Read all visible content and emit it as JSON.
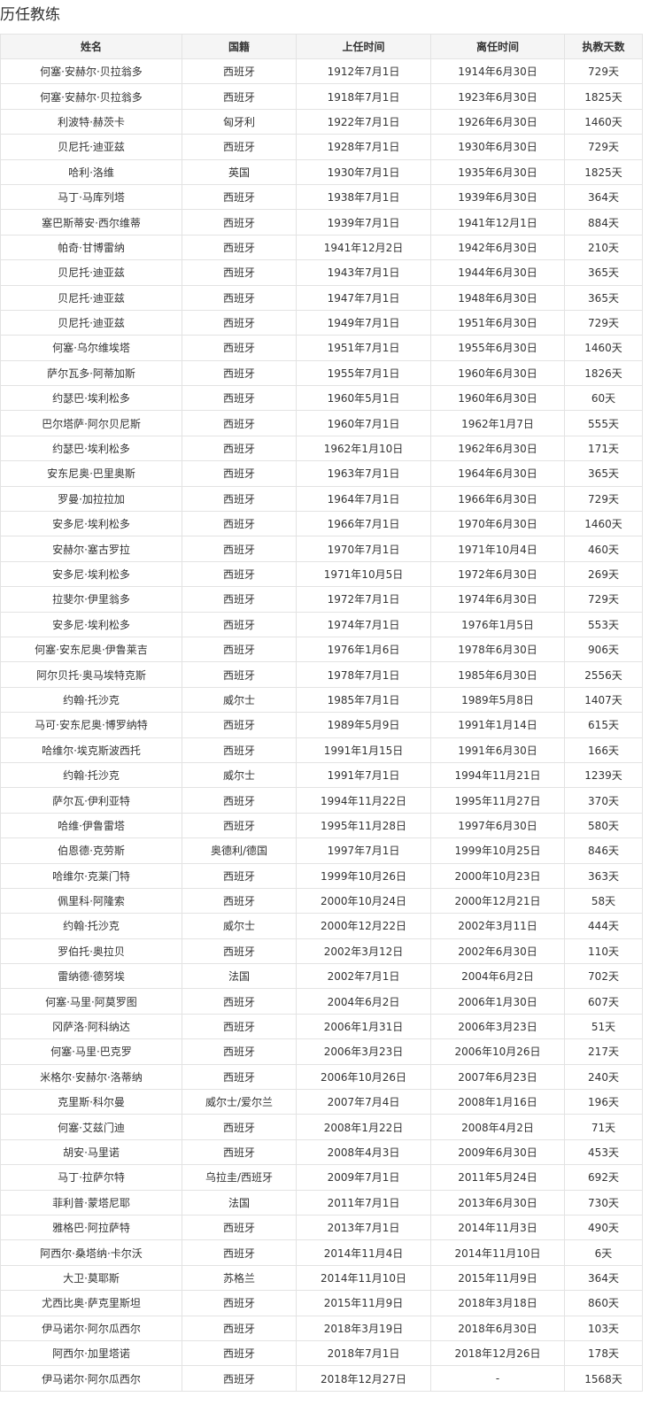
{
  "title": "历任教练",
  "table": {
    "headers": [
      "姓名",
      "国籍",
      "上任时间",
      "离任时间",
      "执教天数"
    ],
    "rows": [
      [
        "何塞·安赫尔·贝拉翁多",
        "西班牙",
        "1912年7月1日",
        "1914年6月30日",
        "729天"
      ],
      [
        "何塞·安赫尔·贝拉翁多",
        "西班牙",
        "1918年7月1日",
        "1923年6月30日",
        "1825天"
      ],
      [
        "利波特·赫茨卡",
        "匈牙利",
        "1922年7月1日",
        "1926年6月30日",
        "1460天"
      ],
      [
        "贝尼托·迪亚兹",
        "西班牙",
        "1928年7月1日",
        "1930年6月30日",
        "729天"
      ],
      [
        "哈利·洛维",
        "英国",
        "1930年7月1日",
        "1935年6月30日",
        "1825天"
      ],
      [
        "马丁·马库列塔",
        "西班牙",
        "1938年7月1日",
        "1939年6月30日",
        "364天"
      ],
      [
        "塞巴斯蒂安·西尔维蒂",
        "西班牙",
        "1939年7月1日",
        "1941年12月1日",
        "884天"
      ],
      [
        "帕奇·甘博雷纳",
        "西班牙",
        "1941年12月2日",
        "1942年6月30日",
        "210天"
      ],
      [
        "贝尼托·迪亚兹",
        "西班牙",
        "1943年7月1日",
        "1944年6月30日",
        "365天"
      ],
      [
        "贝尼托·迪亚兹",
        "西班牙",
        "1947年7月1日",
        "1948年6月30日",
        "365天"
      ],
      [
        "贝尼托·迪亚兹",
        "西班牙",
        "1949年7月1日",
        "1951年6月30日",
        "729天"
      ],
      [
        "何塞·乌尔维埃塔",
        "西班牙",
        "1951年7月1日",
        "1955年6月30日",
        "1460天"
      ],
      [
        "萨尔瓦多·阿蒂加斯",
        "西班牙",
        "1955年7月1日",
        "1960年6月30日",
        "1826天"
      ],
      [
        "约瑟巴·埃利松多",
        "西班牙",
        "1960年5月1日",
        "1960年6月30日",
        "60天"
      ],
      [
        "巴尔塔萨·阿尔贝尼斯",
        "西班牙",
        "1960年7月1日",
        "1962年1月7日",
        "555天"
      ],
      [
        "约瑟巴·埃利松多",
        "西班牙",
        "1962年1月10日",
        "1962年6月30日",
        "171天"
      ],
      [
        "安东尼奥·巴里奥斯",
        "西班牙",
        "1963年7月1日",
        "1964年6月30日",
        "365天"
      ],
      [
        "罗曼·加拉拉加",
        "西班牙",
        "1964年7月1日",
        "1966年6月30日",
        "729天"
      ],
      [
        "安多尼·埃利松多",
        "西班牙",
        "1966年7月1日",
        "1970年6月30日",
        "1460天"
      ],
      [
        "安赫尔·塞古罗拉",
        "西班牙",
        "1970年7月1日",
        "1971年10月4日",
        "460天"
      ],
      [
        "安多尼·埃利松多",
        "西班牙",
        "1971年10月5日",
        "1972年6月30日",
        "269天"
      ],
      [
        "拉斐尔·伊里翁多",
        "西班牙",
        "1972年7月1日",
        "1974年6月30日",
        "729天"
      ],
      [
        "安多尼·埃利松多",
        "西班牙",
        "1974年7月1日",
        "1976年1月5日",
        "553天"
      ],
      [
        "何塞·安东尼奥·伊鲁莱吉",
        "西班牙",
        "1976年1月6日",
        "1978年6月30日",
        "906天"
      ],
      [
        "阿尔贝托·奥马埃特克斯",
        "西班牙",
        "1978年7月1日",
        "1985年6月30日",
        "2556天"
      ],
      [
        "约翰·托沙克",
        "威尔士",
        "1985年7月1日",
        "1989年5月8日",
        "1407天"
      ],
      [
        "马可·安东尼奥·博罗纳特",
        "西班牙",
        "1989年5月9日",
        "1991年1月14日",
        "615天"
      ],
      [
        "哈维尔·埃克斯波西托",
        "西班牙",
        "1991年1月15日",
        "1991年6月30日",
        "166天"
      ],
      [
        "约翰·托沙克",
        "威尔士",
        "1991年7月1日",
        "1994年11月21日",
        "1239天"
      ],
      [
        "萨尔瓦·伊利亚特",
        "西班牙",
        "1994年11月22日",
        "1995年11月27日",
        "370天"
      ],
      [
        "哈维·伊鲁雷塔",
        "西班牙",
        "1995年11月28日",
        "1997年6月30日",
        "580天"
      ],
      [
        "伯恩德·克劳斯",
        "奥德利/德国",
        "1997年7月1日",
        "1999年10月25日",
        "846天"
      ],
      [
        "哈维尔·克莱门特",
        "西班牙",
        "1999年10月26日",
        "2000年10月23日",
        "363天"
      ],
      [
        "佩里科·阿隆索",
        "西班牙",
        "2000年10月24日",
        "2000年12月21日",
        "58天"
      ],
      [
        "约翰·托沙克",
        "威尔士",
        "2000年12月22日",
        "2002年3月11日",
        "444天"
      ],
      [
        "罗伯托·奥拉贝",
        "西班牙",
        "2002年3月12日",
        "2002年6月30日",
        "110天"
      ],
      [
        "雷纳德·德努埃",
        "法国",
        "2002年7月1日",
        "2004年6月2日",
        "702天"
      ],
      [
        "何塞·马里·阿莫罗图",
        "西班牙",
        "2004年6月2日",
        "2006年1月30日",
        "607天"
      ],
      [
        "冈萨洛·阿科纳达",
        "西班牙",
        "2006年1月31日",
        "2006年3月23日",
        "51天"
      ],
      [
        "何塞·马里·巴克罗",
        "西班牙",
        "2006年3月23日",
        "2006年10月26日",
        "217天"
      ],
      [
        "米格尔·安赫尔·洛蒂纳",
        "西班牙",
        "2006年10月26日",
        "2007年6月23日",
        "240天"
      ],
      [
        "克里斯·科尔曼",
        "威尔士/爱尔兰",
        "2007年7月4日",
        "2008年1月16日",
        "196天"
      ],
      [
        "何塞·艾兹门迪",
        "西班牙",
        "2008年1月22日",
        "2008年4月2日",
        "71天"
      ],
      [
        "胡安·马里诺",
        "西班牙",
        "2008年4月3日",
        "2009年6月30日",
        "453天"
      ],
      [
        "马丁·拉萨尔特",
        "乌拉圭/西班牙",
        "2009年7月1日",
        "2011年5月24日",
        "692天"
      ],
      [
        "菲利普·蒙塔尼耶",
        "法国",
        "2011年7月1日",
        "2013年6月30日",
        "730天"
      ],
      [
        "雅格巴·阿拉萨特",
        "西班牙",
        "2013年7月1日",
        "2014年11月3日",
        "490天"
      ],
      [
        "阿西尔·桑塔纳·卡尔沃",
        "西班牙",
        "2014年11月4日",
        "2014年11月10日",
        "6天"
      ],
      [
        "大卫·莫耶斯",
        "苏格兰",
        "2014年11月10日",
        "2015年11月9日",
        "364天"
      ],
      [
        "尤西比奥·萨克里斯坦",
        "西班牙",
        "2015年11月9日",
        "2018年3月18日",
        "860天"
      ],
      [
        "伊马诺尔·阿尔瓜西尔",
        "西班牙",
        "2018年3月19日",
        "2018年6月30日",
        "103天"
      ],
      [
        "阿西尔·加里塔诺",
        "西班牙",
        "2018年7月1日",
        "2018年12月26日",
        "178天"
      ],
      [
        "伊马诺尔·阿尔瓜西尔",
        "西班牙",
        "2018年12月27日",
        "-",
        "1568天"
      ]
    ]
  }
}
